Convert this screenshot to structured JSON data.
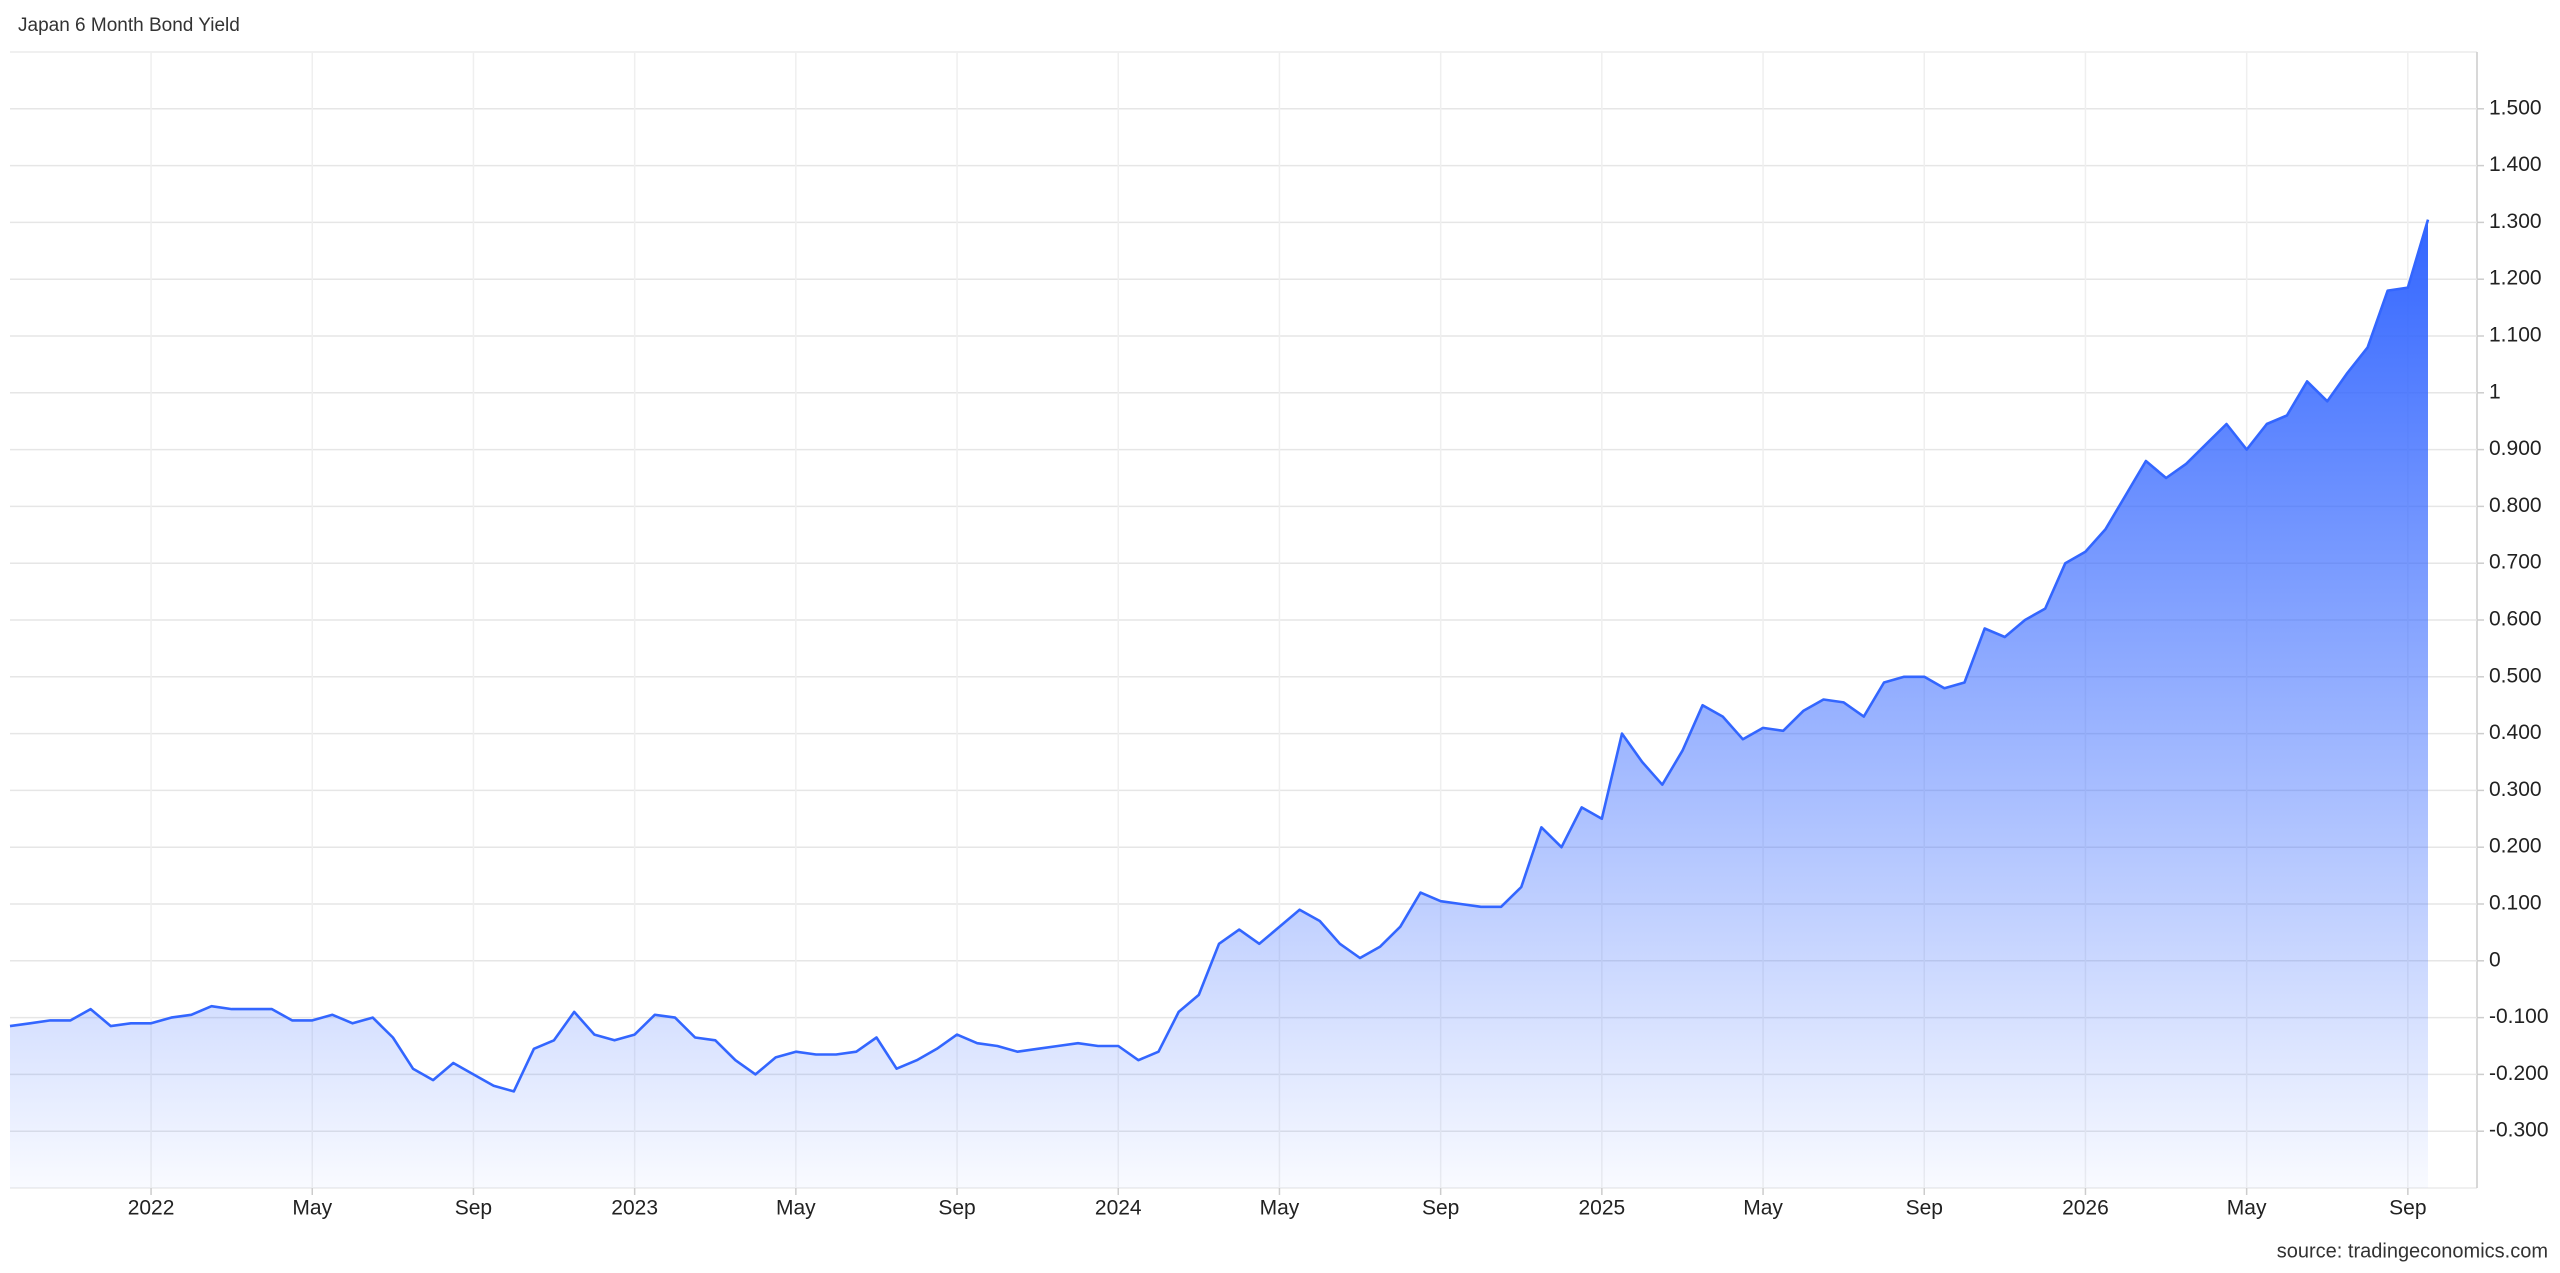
{
  "chart_data": {
    "type": "area",
    "title": "Japan 6 Month Bond Yield",
    "source": "source: tradingeconomics.com",
    "categories": [
      null,
      null,
      null,
      null,
      null,
      null,
      null,
      "2022",
      null,
      null,
      null,
      null,
      null,
      null,
      null,
      "May",
      null,
      null,
      null,
      null,
      null,
      null,
      null,
      "Sep",
      null,
      null,
      null,
      null,
      null,
      null,
      null,
      "2023",
      null,
      null,
      null,
      null,
      null,
      null,
      null,
      "May",
      null,
      null,
      null,
      null,
      null,
      null,
      null,
      "Sep",
      null,
      null,
      null,
      null,
      null,
      null,
      null,
      "2024",
      null,
      null,
      null,
      null,
      null,
      null,
      null,
      "May",
      null,
      null,
      null,
      null,
      null,
      null,
      null,
      "Sep",
      null,
      null,
      null,
      null,
      null,
      null,
      null,
      "2025",
      null,
      null,
      null,
      null,
      null,
      null,
      null,
      "May",
      null,
      null,
      null,
      null,
      null,
      null,
      null,
      "Sep",
      null,
      null,
      null,
      null,
      null,
      null,
      null,
      "2026",
      null,
      null,
      null,
      null,
      null,
      null,
      null,
      "May",
      null,
      null,
      null,
      null,
      null,
      null,
      null,
      "Sep",
      null
    ],
    "series": [
      {
        "name": "Japan 6 Month Bond Yield",
        "color": "#3366ff",
        "values": [
          -0.115,
          -0.11,
          -0.105,
          -0.105,
          -0.085,
          -0.115,
          -0.11,
          -0.11,
          -0.1,
          -0.095,
          -0.08,
          -0.085,
          -0.085,
          -0.085,
          -0.105,
          -0.105,
          -0.095,
          -0.11,
          -0.1,
          -0.135,
          -0.19,
          -0.21,
          -0.18,
          -0.2,
          -0.22,
          -0.23,
          -0.155,
          -0.14,
          -0.09,
          -0.13,
          -0.14,
          -0.13,
          -0.095,
          -0.1,
          -0.135,
          -0.14,
          -0.175,
          -0.2,
          -0.17,
          -0.16,
          -0.165,
          -0.165,
          -0.16,
          -0.135,
          -0.19,
          -0.175,
          -0.155,
          -0.13,
          -0.145,
          -0.15,
          -0.16,
          -0.155,
          -0.15,
          -0.145,
          -0.15,
          -0.15,
          -0.175,
          -0.16,
          -0.09,
          -0.06,
          0.03,
          0.055,
          0.03,
          0.06,
          0.09,
          0.07,
          0.03,
          0.005,
          0.025,
          0.06,
          0.12,
          0.105,
          0.1,
          0.095,
          0.095,
          0.13,
          0.235,
          0.2,
          0.27,
          0.25,
          0.4,
          0.35,
          0.31,
          0.37,
          0.45,
          0.43,
          0.39,
          0.41,
          0.405,
          0.44,
          0.46,
          0.455,
          0.43,
          0.49,
          0.5,
          0.5,
          0.48,
          0.49,
          0.585,
          0.57,
          0.6,
          0.62,
          0.7,
          0.72,
          0.76,
          0.82,
          0.88,
          0.85,
          0.875,
          0.91,
          0.945,
          0.9,
          0.945,
          0.96,
          1.02,
          0.985,
          1.035,
          1.08,
          1.18,
          1.185,
          1.305
        ]
      }
    ],
    "ylim": [
      -0.4,
      1.6
    ],
    "yticks": [
      {
        "value": -0.3,
        "label": "-0.300"
      },
      {
        "value": -0.2,
        "label": "-0.200"
      },
      {
        "value": -0.1,
        "label": "-0.100"
      },
      0,
      {
        "value": 0.1,
        "label": "0.100"
      },
      {
        "value": 0.2,
        "label": "0.200"
      },
      {
        "value": 0.3,
        "label": "0.300"
      },
      {
        "value": 0.4,
        "label": "0.400"
      },
      {
        "value": 0.5,
        "label": "0.500"
      },
      {
        "value": 0.6,
        "label": "0.600"
      },
      {
        "value": 0.7,
        "label": "0.700"
      },
      {
        "value": 0.8,
        "label": "0.800"
      },
      {
        "value": 0.9,
        "label": "0.900"
      },
      1,
      {
        "value": 1.1,
        "label": "1.100"
      },
      {
        "value": 1.2,
        "label": "1.200"
      },
      {
        "value": 1.3,
        "label": "1.300"
      },
      {
        "value": 1.4,
        "label": "1.400"
      },
      {
        "value": 1.5,
        "label": "1.500"
      }
    ],
    "grid": true
  }
}
